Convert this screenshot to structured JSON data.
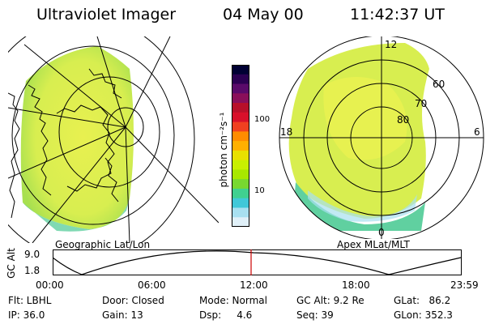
{
  "header": {
    "instrument": "Ultraviolet Imager",
    "date": "04 May 00",
    "time": "11:42:37 UT"
  },
  "colorbar": {
    "unit_label": "photon cm⁻²s⁻¹",
    "tick_100": "100",
    "tick_10": "10",
    "colors": [
      "#000033",
      "#2b0052",
      "#5a0a6a",
      "#8a0f5a",
      "#b8102a",
      "#d8102a",
      "#f04020",
      "#ff8c00",
      "#ffb000",
      "#e8e000",
      "#c8f000",
      "#a8e800",
      "#78d830",
      "#40d090",
      "#40c8d8",
      "#a8e0f0",
      "#e0f0f8"
    ]
  },
  "maps": {
    "left_caption": "Geographic Lat/Lon",
    "right_caption": "Apex MLat/MLT",
    "apex_labels": {
      "mlt_12": "12",
      "mlt_18": "18",
      "mlt_6": "6",
      "mlt_0": "0",
      "lat_60": "60",
      "lat_70": "70",
      "lat_80": "80"
    },
    "aurora_color": "#e8f050",
    "mid_color": "#b0e850",
    "low_color": "#60d0a0"
  },
  "altitude_plot": {
    "ylabel": "GC Alt",
    "ytick_high": "9.0",
    "ytick_low": "1.8",
    "xticks": [
      "00:00",
      "06:00",
      "12:00",
      "18:00",
      "23:59"
    ],
    "marker_color": "#cc0000"
  },
  "status": {
    "flt": "Flt: LBHL",
    "ip": "IP: 36.0",
    "door": "Door: Closed",
    "gain": "Gain: 13",
    "mode": "Mode: Normal",
    "dsp": "Dsp:     4.6",
    "gcalt": "GC Alt: 9.2 Re",
    "seq": "Seq: 39",
    "glat": "GLat:   86.2",
    "glon": "GLon: 352.3"
  }
}
